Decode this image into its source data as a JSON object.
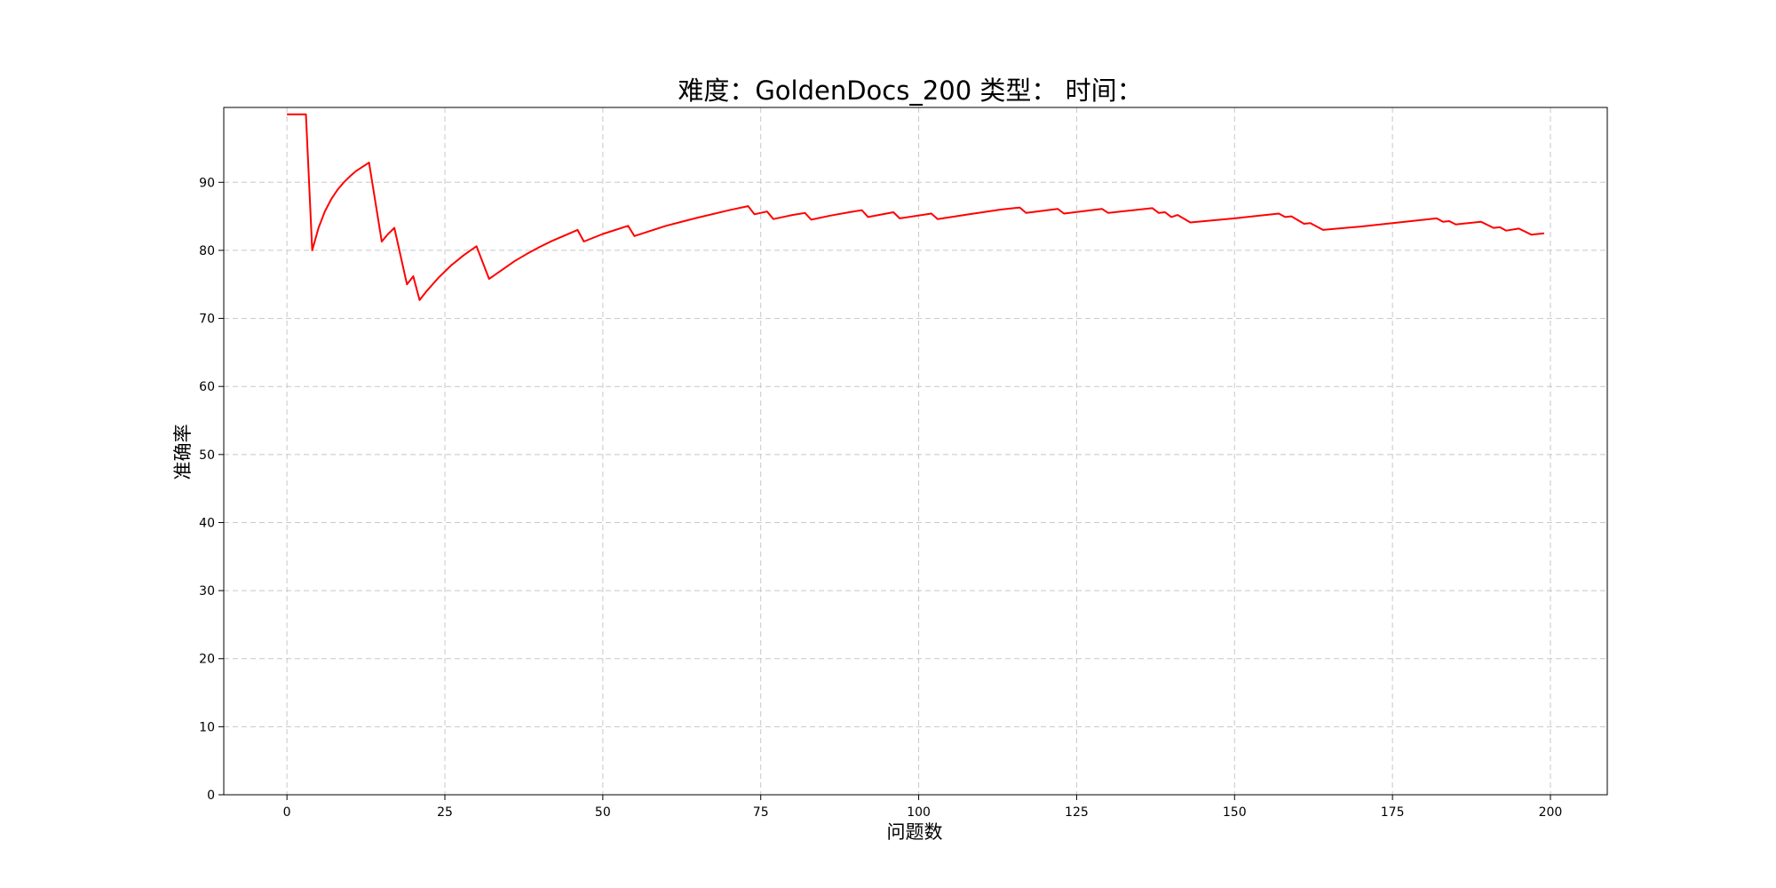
{
  "chart_data": {
    "type": "line",
    "title": "难度：GoldenDocs_200 类型： 时间：",
    "xlabel": "问题数",
    "ylabel": "准确率",
    "xlim": [
      -10,
      209
    ],
    "ylim": [
      0,
      101
    ],
    "xticks": [
      0,
      25,
      50,
      75,
      100,
      125,
      150,
      175,
      200
    ],
    "yticks": [
      0,
      10,
      20,
      30,
      40,
      50,
      60,
      70,
      80,
      90
    ],
    "grid": true,
    "series": [
      {
        "color": "#ff0000",
        "x": [
          0,
          3,
          4,
          5,
          6,
          7,
          8,
          9,
          10,
          11,
          12,
          13,
          15,
          16,
          17,
          19,
          20,
          21,
          22,
          24,
          26,
          28,
          30,
          32,
          34,
          36,
          38,
          40,
          42,
          44,
          46,
          47,
          50,
          54,
          55,
          60,
          65,
          70,
          73,
          74,
          76,
          77,
          80,
          82,
          83,
          86,
          89,
          91,
          92,
          96,
          97,
          102,
          103,
          108,
          113,
          116,
          117,
          122,
          123,
          129,
          130,
          137,
          138,
          139,
          140,
          141,
          143,
          150,
          157,
          158,
          159,
          161,
          162,
          164,
          170,
          176,
          182,
          183,
          184,
          185,
          189,
          191,
          192,
          193,
          195,
          197,
          199
        ],
        "y": [
          100,
          100,
          80,
          83.3,
          85.7,
          87.5,
          88.9,
          90,
          90.9,
          91.7,
          92.3,
          92.9,
          81.3,
          82.4,
          83.3,
          75,
          76.2,
          72.7,
          73.9,
          76,
          77.8,
          79.3,
          80.6,
          75.8,
          77.1,
          78.4,
          79.5,
          80.5,
          81.4,
          82.2,
          83,
          81.3,
          82.4,
          83.6,
          82.1,
          83.6,
          84.8,
          85.9,
          86.5,
          85.3,
          85.7,
          84.6,
          85.2,
          85.5,
          84.5,
          85.1,
          85.6,
          85.9,
          84.9,
          85.6,
          84.7,
          85.4,
          84.6,
          85.3,
          86,
          86.3,
          85.5,
          86.1,
          85.4,
          86.1,
          85.5,
          86.2,
          85.5,
          85.6,
          84.9,
          85.2,
          84.1,
          84.7,
          85.4,
          84.9,
          85,
          83.9,
          84.0,
          83.0,
          83.5,
          84.1,
          84.7,
          84.2,
          84.3,
          83.8,
          84.2,
          83.3,
          83.4,
          82.9,
          83.2,
          82.3,
          82.5
        ]
      }
    ]
  }
}
